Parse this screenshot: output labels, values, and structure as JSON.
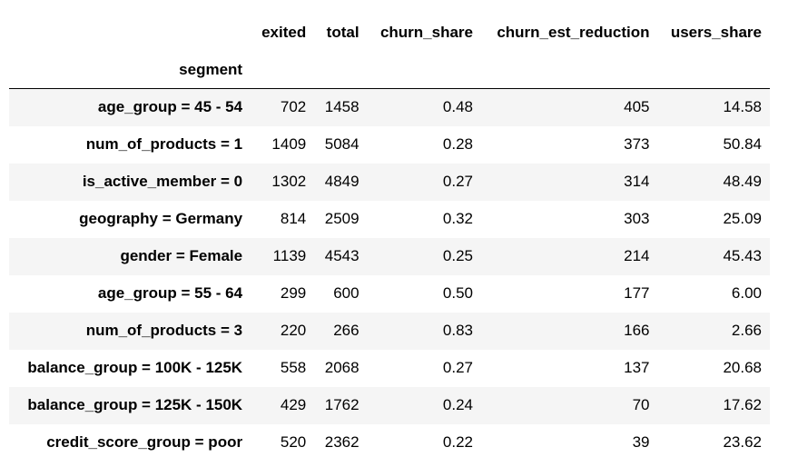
{
  "table": {
    "columns": [
      "exited",
      "total",
      "churn_share",
      "churn_est_reduction",
      "users_share"
    ],
    "index_name": "segment",
    "rows": [
      {
        "segment": "age_group = 45 - 54",
        "values": [
          "702",
          "1458",
          "0.48",
          "405",
          "14.58"
        ]
      },
      {
        "segment": "num_of_products = 1",
        "values": [
          "1409",
          "5084",
          "0.28",
          "373",
          "50.84"
        ]
      },
      {
        "segment": "is_active_member = 0",
        "values": [
          "1302",
          "4849",
          "0.27",
          "314",
          "48.49"
        ]
      },
      {
        "segment": "geography = Germany",
        "values": [
          "814",
          "2509",
          "0.32",
          "303",
          "25.09"
        ]
      },
      {
        "segment": "gender = Female",
        "values": [
          "1139",
          "4543",
          "0.25",
          "214",
          "45.43"
        ]
      },
      {
        "segment": "age_group = 55 - 64",
        "values": [
          "299",
          "600",
          "0.50",
          "177",
          "6.00"
        ]
      },
      {
        "segment": "num_of_products = 3",
        "values": [
          "220",
          "266",
          "0.83",
          "166",
          "2.66"
        ]
      },
      {
        "segment": "balance_group = 100K - 125K",
        "values": [
          "558",
          "2068",
          "0.27",
          "137",
          "20.68"
        ]
      },
      {
        "segment": "balance_group = 125K - 150K",
        "values": [
          "429",
          "1762",
          "0.24",
          "70",
          "17.62"
        ]
      },
      {
        "segment": "credit_score_group = poor",
        "values": [
          "520",
          "2362",
          "0.22",
          "39",
          "23.62"
        ]
      }
    ]
  }
}
